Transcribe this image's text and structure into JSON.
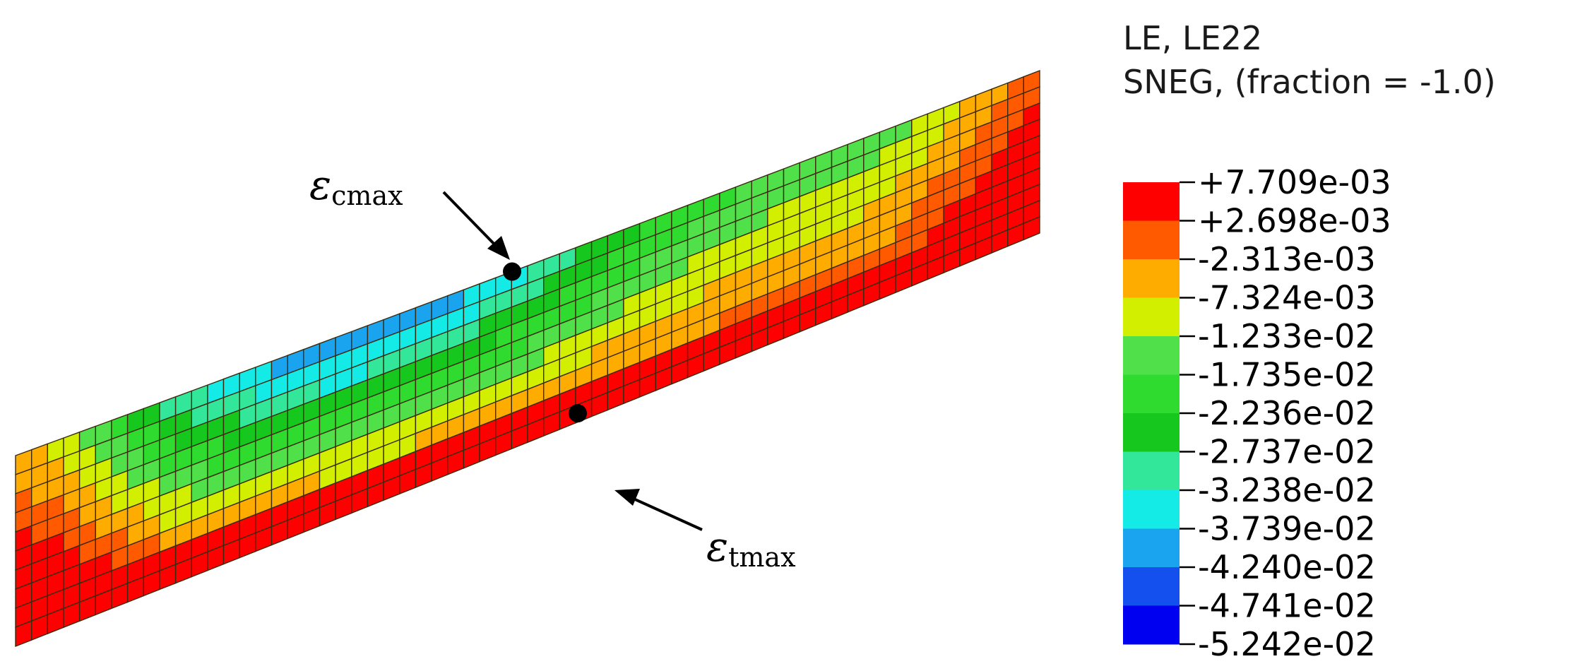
{
  "legend": {
    "title_line1": "LE, LE22",
    "title_line2": "SNEG, (fraction = -1.0)",
    "ticks": [
      "+7.709e-03",
      "+2.698e-03",
      "-2.313e-03",
      "-7.324e-03",
      "-1.233e-02",
      "-1.735e-02",
      "-2.236e-02",
      "-2.737e-02",
      "-3.238e-02",
      "-3.739e-02",
      "-4.240e-02",
      "-4.741e-02",
      "-5.242e-02"
    ],
    "band_colors": [
      "#ff0000",
      "#ff5a00",
      "#ffac00",
      "#d2ef00",
      "#4fe04a",
      "#2edb2e",
      "#16c81e",
      "#32e69a",
      "#14eae6",
      "#1aa4ef",
      "#1450ee",
      "#0000f0"
    ]
  },
  "annotations": {
    "compression": {
      "symbol": "ε",
      "subscript": "cmax"
    },
    "tension": {
      "symbol": "ε",
      "subscript": "tmax"
    }
  },
  "mesh": {
    "columns": 64,
    "rows": 10,
    "outline_color": "#3a2a10"
  }
}
